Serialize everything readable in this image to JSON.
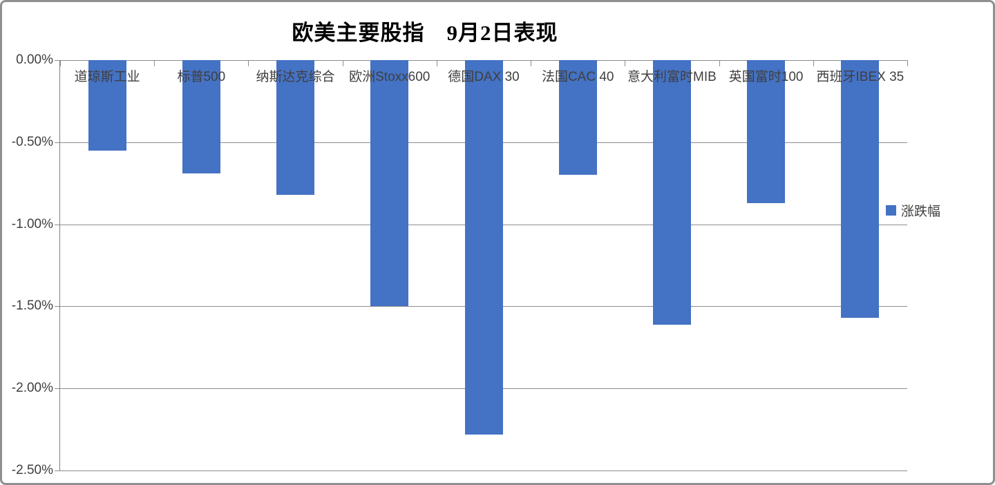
{
  "chart_data": {
    "type": "bar",
    "title": "欧美主要股指　9月2日表现",
    "categories": [
      "道琼斯工业",
      "标普500",
      "纳斯达克综合",
      "欧洲Stoxx600",
      "德国DAX 30",
      "法国CAC 40",
      "意大利富时MIB",
      "英国富时100",
      "西班牙IBEX 35"
    ],
    "series": [
      {
        "name": "涨跌幅",
        "values": [
          -0.55,
          -0.69,
          -0.82,
          -1.5,
          -2.28,
          -0.7,
          -1.61,
          -0.87,
          -1.57
        ]
      }
    ],
    "xlabel": "",
    "ylabel": "",
    "ylim": [
      -2.5,
      0
    ],
    "ytick_step": 0.5,
    "ytick_labels": [
      "0.00%",
      "-0.50%",
      "-1.00%",
      "-1.50%",
      "-2.00%",
      "-2.50%"
    ],
    "value_format": "percent",
    "grid": true,
    "legend_position": "right",
    "colors": {
      "bar": "#4472C4",
      "gridline": "#8c8c8c",
      "axis": "#7f7f7f",
      "text": "#3f3f3f",
      "title": "#000000",
      "frame_border": "#8f8f8f",
      "background": "#ffffff"
    }
  }
}
